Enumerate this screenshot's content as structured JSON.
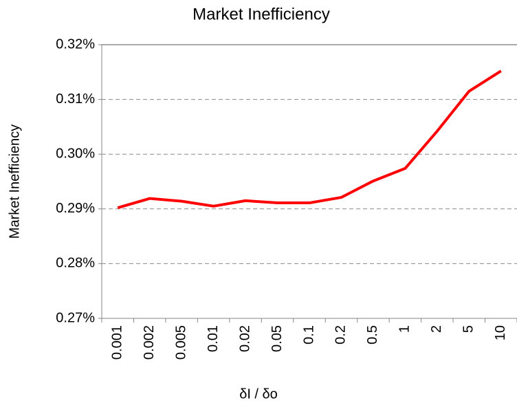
{
  "chart_data": {
    "type": "line",
    "title": "Market Inefficiency",
    "x_label": "δI / δo",
    "y_label": "Market Inefficiency",
    "categories": [
      "0.001",
      "0.002",
      "0.005",
      "0.01",
      "0.02",
      "0.05",
      "0.1",
      "0.2",
      "0.5",
      "1",
      "2",
      "5",
      "10"
    ],
    "series": [
      {
        "name": "Market Inefficiency",
        "color": "#ff0000",
        "values": [
          0.2902,
          0.2919,
          0.2914,
          0.2905,
          0.2915,
          0.2911,
          0.2911,
          0.2921,
          0.2951,
          0.2974,
          0.3042,
          0.3115,
          0.3152
        ]
      }
    ],
    "ylim": [
      0.27,
      0.32
    ],
    "yticks": [
      {
        "value": 0.27,
        "label": "0.27%"
      },
      {
        "value": 0.28,
        "label": "0.28%"
      },
      {
        "value": 0.29,
        "label": "0.29%"
      },
      {
        "value": 0.3,
        "label": "0.30%"
      },
      {
        "value": 0.31,
        "label": "0.31%"
      },
      {
        "value": 0.32,
        "label": "0.32%"
      }
    ],
    "grid": true
  }
}
